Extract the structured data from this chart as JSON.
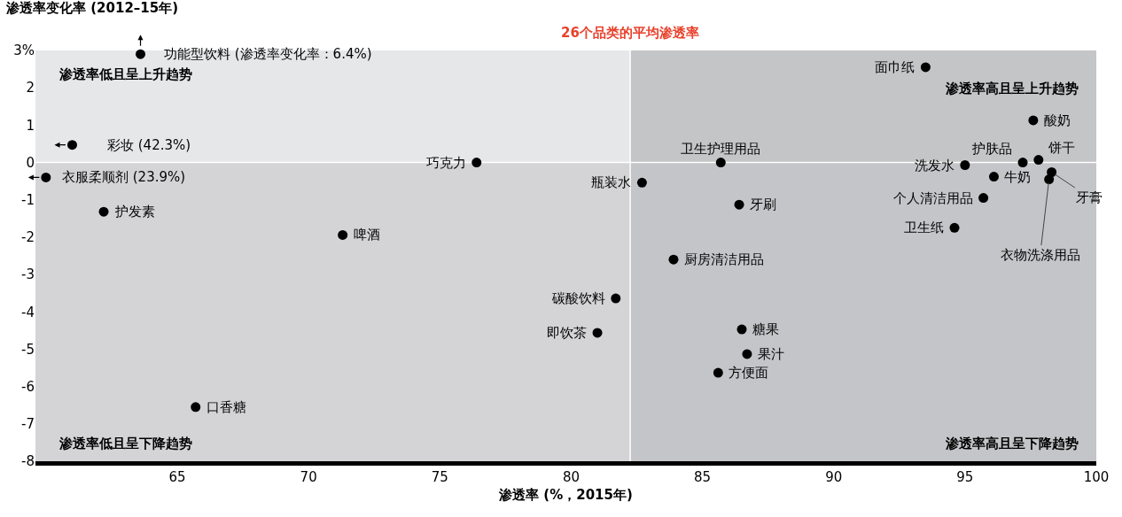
{
  "chart_data": {
    "type": "scatter",
    "xlabel": "渗透率 (%，2015年)",
    "ylabel": "渗透率变化率 (2012–15年)",
    "x": [
      63.6,
      61.0,
      60.0,
      62.2,
      71.3,
      65.7,
      76.4,
      82.7,
      81.7,
      81.0,
      85.7,
      86.4,
      83.9,
      86.5,
      86.7,
      85.6,
      93.5,
      97.6,
      97.2,
      97.8,
      95.0,
      96.1,
      98.3,
      98.2,
      95.7,
      94.6
    ],
    "values": [
      2.9,
      0.47,
      -0.4,
      -1.32,
      -1.94,
      -6.55,
      0.0,
      -0.54,
      -3.64,
      -4.56,
      0.0,
      -1.13,
      -2.6,
      -4.47,
      -5.13,
      -5.63,
      2.55,
      1.13,
      0.0,
      0.07,
      -0.07,
      -0.38,
      -0.26,
      -0.45,
      -0.95,
      -1.75
    ],
    "color": "#000000",
    "marker": "circle",
    "xlim": [
      59.6,
      100
    ],
    "ylim": [
      -8,
      3
    ],
    "xticks": [
      65,
      70,
      75,
      80,
      85,
      90,
      95,
      100
    ],
    "yticks": [
      -8,
      -7,
      -6,
      -5,
      -4,
      -3,
      -2,
      -1,
      0,
      1,
      2,
      {
        "value": 3,
        "label": "3%"
      }
    ],
    "bands": [
      {
        "axis": "x",
        "from": 82.25,
        "to": 100,
        "color": "#a7a9ac"
      },
      {
        "axis": "y",
        "from": -8,
        "to": 0,
        "color": "#c4c5c8"
      }
    ],
    "ref_lines": [
      {
        "axis": "x",
        "value": 82.25,
        "label": "26个品类的平均渗透率",
        "color": "#ffffff"
      },
      {
        "axis": "y",
        "value": 0,
        "color": "#ffffff"
      }
    ],
    "annotations": [
      {
        "text": "功能型饮料 (渗透率变化率：6.4%)",
        "x": 63.6,
        "y": 2.9
      },
      {
        "text": "彩妆 (42.3%)",
        "x": 61.0,
        "y": 0.47
      },
      {
        "text": "衣服柔顺剂 (23.9%)",
        "x": 60.0,
        "y": -0.4
      },
      {
        "text": "护发素",
        "x": 62.2,
        "y": -1.32
      },
      {
        "text": "啤酒",
        "x": 71.3,
        "y": -1.94
      },
      {
        "text": "口香糖",
        "x": 65.7,
        "y": -6.55
      },
      {
        "text": "巧克力",
        "x": 76.4,
        "y": 0.0
      },
      {
        "text": "瓶装水",
        "x": 82.7,
        "y": -0.54
      },
      {
        "text": "碳酸饮料",
        "x": 81.7,
        "y": -3.64
      },
      {
        "text": "即饮茶",
        "x": 81.0,
        "y": -4.56
      },
      {
        "text": "卫生护理用品",
        "x": 85.7,
        "y": 0.0
      },
      {
        "text": "牙刷",
        "x": 86.4,
        "y": -1.13
      },
      {
        "text": "厨房清洁用品",
        "x": 83.9,
        "y": -2.6
      },
      {
        "text": "糖果",
        "x": 86.5,
        "y": -4.47
      },
      {
        "text": "果汁",
        "x": 86.7,
        "y": -5.13
      },
      {
        "text": "方便面",
        "x": 85.6,
        "y": -5.63
      },
      {
        "text": "面巾纸",
        "x": 93.5,
        "y": 2.55
      },
      {
        "text": "酸奶",
        "x": 97.6,
        "y": 1.13
      },
      {
        "text": "护肤品",
        "x": 97.2,
        "y": 0.0
      },
      {
        "text": "饼干",
        "x": 97.8,
        "y": 0.07
      },
      {
        "text": "洗发水",
        "x": 95.0,
        "y": -0.07
      },
      {
        "text": "牛奶",
        "x": 96.1,
        "y": -0.38
      },
      {
        "text": "牙膏",
        "x": 98.3,
        "y": -0.26
      },
      {
        "text": "衣物洗涤用品",
        "x": 98.2,
        "y": -0.45
      },
      {
        "text": "个人清洁用品",
        "x": 95.7,
        "y": -0.95
      },
      {
        "text": "卫生纸",
        "x": 94.6,
        "y": -1.75
      },
      "渗透率低且呈上升趋势",
      "渗透率高且呈上升趋势",
      "渗透率低且呈下降趋势",
      "渗透率高且呈下降趋势"
    ]
  }
}
